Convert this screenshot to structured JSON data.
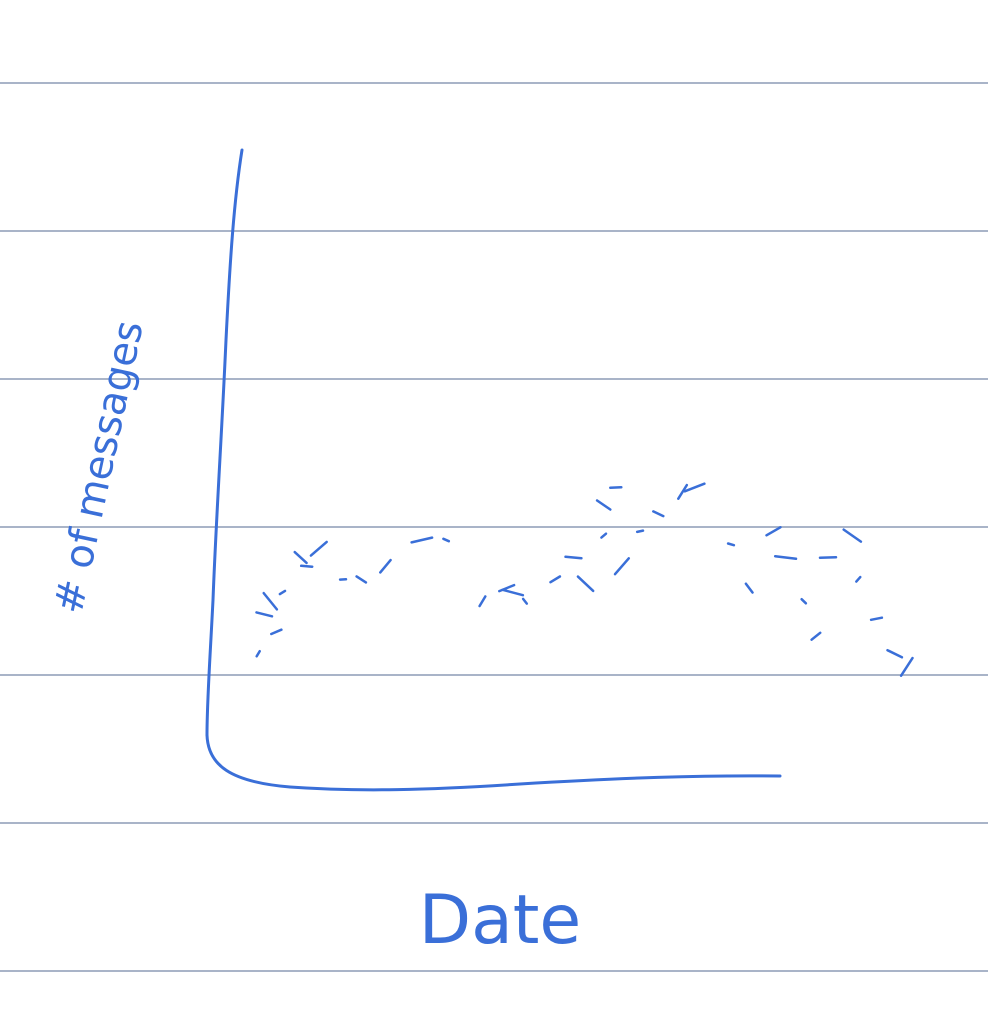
{
  "page": {
    "ink_color": "#3a6fd8",
    "line_color": "#a9b4c8",
    "background": "#ffffff"
  },
  "chart_data": {
    "type": "scatter",
    "title": "",
    "xlabel": "Date",
    "ylabel": "# of messages",
    "grid": false,
    "legend": "none",
    "marks": [
      {
        "x": 0.18,
        "y": 0.18
      },
      {
        "x": 0.21,
        "y": 0.23
      },
      {
        "x": 0.19,
        "y": 0.27
      },
      {
        "x": 0.2,
        "y": 0.3
      },
      {
        "x": 0.22,
        "y": 0.32
      },
      {
        "x": 0.26,
        "y": 0.38
      },
      {
        "x": 0.25,
        "y": 0.4
      },
      {
        "x": 0.28,
        "y": 0.42
      },
      {
        "x": 0.32,
        "y": 0.35
      },
      {
        "x": 0.35,
        "y": 0.35
      },
      {
        "x": 0.39,
        "y": 0.38
      },
      {
        "x": 0.45,
        "y": 0.44
      },
      {
        "x": 0.49,
        "y": 0.44
      },
      {
        "x": 0.55,
        "y": 0.3
      },
      {
        "x": 0.59,
        "y": 0.33
      },
      {
        "x": 0.6,
        "y": 0.32
      },
      {
        "x": 0.62,
        "y": 0.3
      },
      {
        "x": 0.67,
        "y": 0.35
      },
      {
        "x": 0.7,
        "y": 0.4
      },
      {
        "x": 0.72,
        "y": 0.34
      },
      {
        "x": 0.75,
        "y": 0.45
      },
      {
        "x": 0.77,
        "y": 0.56
      },
      {
        "x": 0.75,
        "y": 0.52
      },
      {
        "x": 0.78,
        "y": 0.38
      },
      {
        "x": 0.81,
        "y": 0.46
      },
      {
        "x": 0.84,
        "y": 0.5
      },
      {
        "x": 0.88,
        "y": 0.55
      },
      {
        "x": 0.9,
        "y": 0.56
      },
      {
        "x": 0.96,
        "y": 0.43
      },
      {
        "x": 0.99,
        "y": 0.33
      },
      {
        "x": 1.03,
        "y": 0.46
      },
      {
        "x": 1.05,
        "y": 0.4
      },
      {
        "x": 1.08,
        "y": 0.3
      },
      {
        "x": 1.1,
        "y": 0.22
      },
      {
        "x": 1.12,
        "y": 0.4
      },
      {
        "x": 1.16,
        "y": 0.45
      },
      {
        "x": 1.17,
        "y": 0.35
      },
      {
        "x": 1.2,
        "y": 0.26
      },
      {
        "x": 1.23,
        "y": 0.18
      },
      {
        "x": 1.25,
        "y": 0.15
      }
    ]
  }
}
